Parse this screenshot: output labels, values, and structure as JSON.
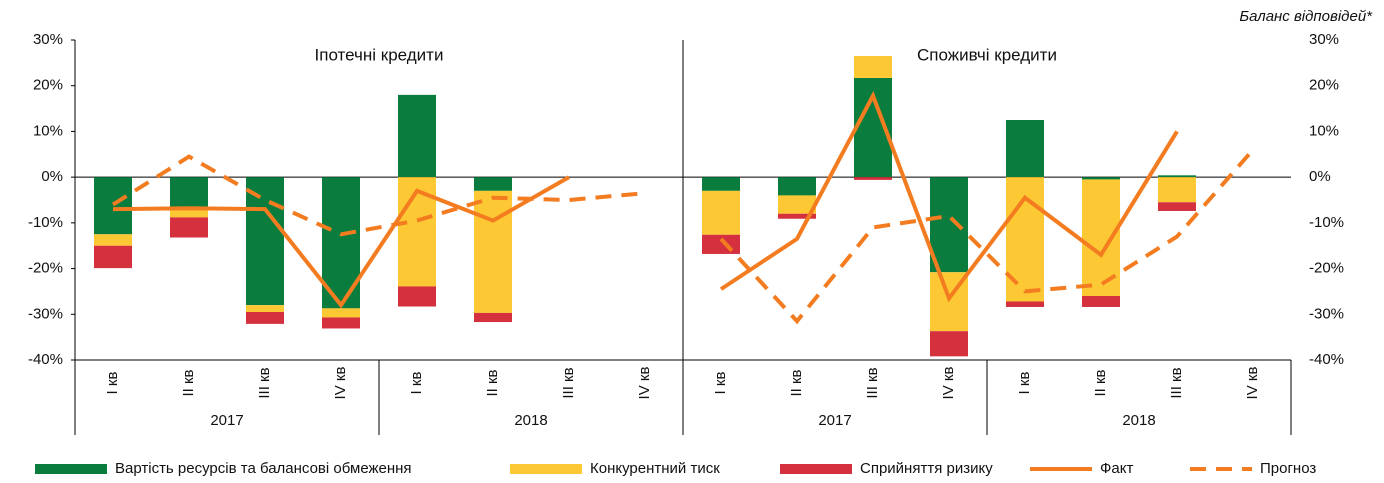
{
  "chart_data": {
    "type": "bar",
    "note": "Баланс відповідей*",
    "ylim": [
      -40,
      30
    ],
    "yticks": [
      {
        "value": -40,
        "label": "-40%"
      },
      {
        "value": -30,
        "label": "-30%"
      },
      {
        "value": -20,
        "label": "-20%"
      },
      {
        "value": -10,
        "label": "-10%"
      },
      {
        "value": 0,
        "label": "0%"
      },
      {
        "value": 10,
        "label": "10%"
      },
      {
        "value": 20,
        "label": "20%"
      },
      {
        "value": 30,
        "label": "30%"
      }
    ],
    "categories": [
      "I кв",
      "II кв",
      "III кв",
      "IV кв",
      "I кв",
      "II кв",
      "III кв",
      "IV кв"
    ],
    "groups": [
      "2017",
      "2018"
    ],
    "series": [
      {
        "name": "Вартість ресурсів та балансові обмеження",
        "color": "#0a7d3e",
        "style": "bar"
      },
      {
        "name": "Конкурентний тиск",
        "color": "#fcc934",
        "style": "bar"
      },
      {
        "name": "Сприйняття ризику",
        "color": "#d5303d",
        "style": "bar"
      },
      {
        "name": "Факт",
        "color": "#f47c20",
        "style": "line"
      },
      {
        "name": "Прогноз",
        "color": "#f47c20",
        "style": "dash"
      }
    ],
    "panels": [
      {
        "title": "Іпотечні кредити",
        "values": [
          [
            -12.5,
            -6.8,
            -28,
            -28.7,
            18,
            -3,
            null,
            null
          ],
          [
            -2.5,
            -2,
            -1.5,
            -2,
            -23.9,
            -26.7,
            null,
            null
          ],
          [
            -4.9,
            -4.4,
            -2.6,
            -2.4,
            -4.4,
            -2,
            null,
            null
          ],
          [
            -7,
            -6.8,
            -7,
            -28,
            -3,
            -9.5,
            0,
            null
          ],
          [
            -6,
            4.5,
            -5,
            -12.5,
            -9.5,
            -4.5,
            -5,
            -3.5
          ]
        ]
      },
      {
        "title": "Споживчі кредити",
        "values": [
          [
            -3,
            -4,
            21.7,
            -20.8,
            12.5,
            -0.5,
            0.4,
            null
          ],
          [
            -9.6,
            -4,
            4.8,
            -12.9,
            -27.2,
            -25.5,
            -5.5,
            null
          ],
          [
            -4.2,
            -1.1,
            -0.6,
            -5.5,
            -1.2,
            -2.4,
            -1.9,
            null
          ],
          [
            -24.5,
            -13.5,
            17.8,
            -26.5,
            -4.5,
            -17,
            10,
            null
          ],
          [
            -13.5,
            -31.5,
            -11,
            -8.5,
            -25,
            -23.5,
            -13,
            6
          ]
        ]
      }
    ]
  }
}
